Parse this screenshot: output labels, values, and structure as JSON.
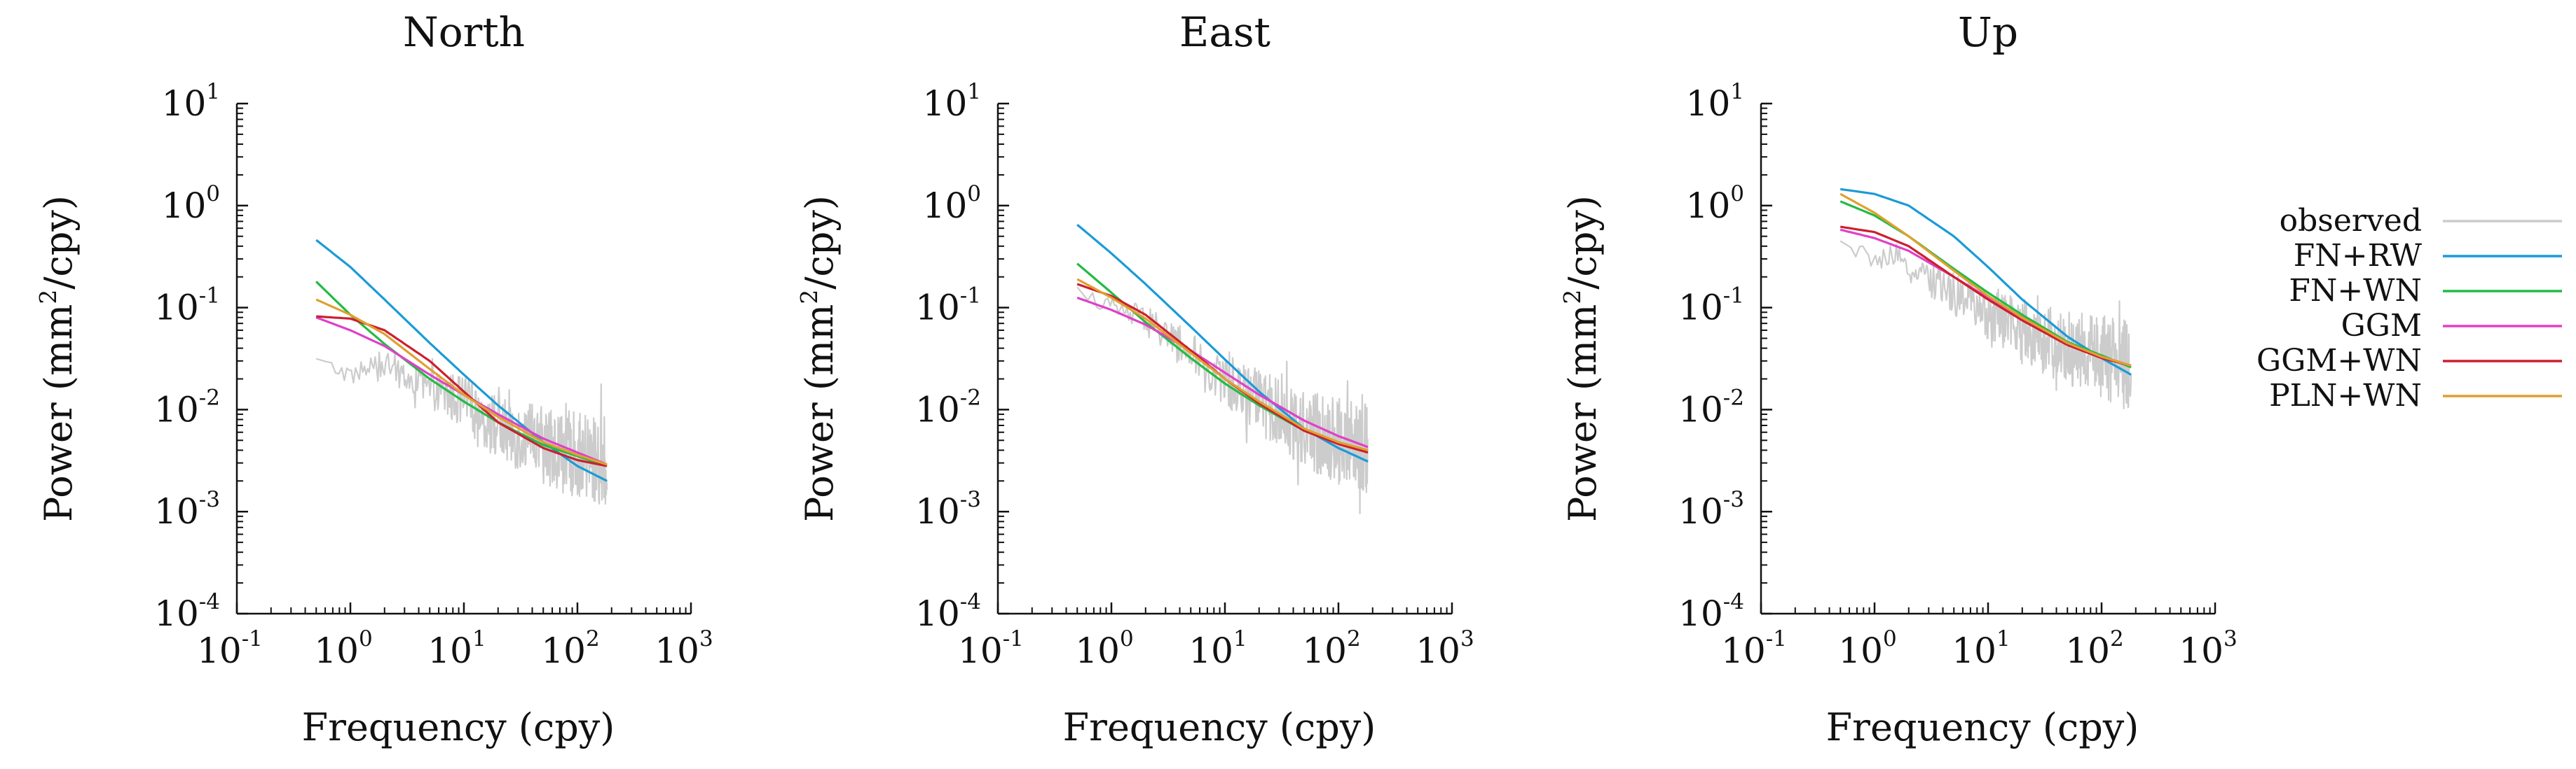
{
  "chart_data": {
    "type": "line",
    "x_scale": "log",
    "y_scale": "log",
    "xlim": [
      0.1,
      1000
    ],
    "ylim": [
      0.0001,
      10
    ],
    "x_ticks": [
      0.1,
      1,
      10,
      100,
      1000
    ],
    "y_ticks": [
      0.0001,
      0.001,
      0.01,
      0.1,
      1,
      10
    ],
    "tick_base": "10",
    "x_tick_exponents": [
      "-1",
      "0",
      "1",
      "2",
      "3"
    ],
    "y_tick_exponents": [
      "-4",
      "-3",
      "-2",
      "-1",
      "0",
      "1"
    ],
    "xlabel": "Frequency (cpy)",
    "ylabel_prefix": "Power (mm",
    "ylabel_sup": "2",
    "ylabel_suffix": "/cpy)",
    "freq_range": [
      0.5,
      182
    ],
    "legend": {
      "position": "right",
      "entries": [
        {
          "label": "observed",
          "color": "#cccccc"
        },
        {
          "label": "FN+RW",
          "color": "#1a9bd7"
        },
        {
          "label": "FN+WN",
          "color": "#22bb44"
        },
        {
          "label": "GGM",
          "color": "#e040c8"
        },
        {
          "label": "GGM+WN",
          "color": "#cc1f2f"
        },
        {
          "label": "PLN+WN",
          "color": "#e0a030"
        }
      ]
    },
    "panels": [
      {
        "title": "North",
        "series": [
          {
            "name": "observed",
            "color": "#cccccc",
            "x": [
              0.5,
              1,
              2,
              5,
              10,
              20,
              50,
              100,
              182
            ],
            "y": [
              0.03,
              0.022,
              0.028,
              0.015,
              0.012,
              0.0065,
              0.0045,
              0.0035,
              0.003
            ]
          },
          {
            "name": "FN+RW",
            "color": "#1a9bd7",
            "x": [
              0.5,
              1,
              2,
              5,
              10,
              20,
              50,
              100,
              182
            ],
            "y": [
              0.46,
              0.25,
              0.12,
              0.045,
              0.022,
              0.011,
              0.0048,
              0.0028,
              0.002
            ]
          },
          {
            "name": "FN+WN",
            "color": "#22bb44",
            "x": [
              0.5,
              1,
              2,
              5,
              10,
              20,
              50,
              100,
              182
            ],
            "y": [
              0.18,
              0.085,
              0.044,
              0.02,
              0.012,
              0.0075,
              0.0045,
              0.0035,
              0.0028
            ]
          },
          {
            "name": "GGM",
            "color": "#e040c8",
            "x": [
              0.5,
              1,
              2,
              5,
              10,
              20,
              50,
              100,
              182
            ],
            "y": [
              0.08,
              0.06,
              0.042,
              0.022,
              0.014,
              0.009,
              0.0052,
              0.0038,
              0.0029
            ]
          },
          {
            "name": "GGM+WN",
            "color": "#cc1f2f",
            "x": [
              0.5,
              1,
              2,
              5,
              10,
              20,
              50,
              100,
              182
            ],
            "y": [
              0.082,
              0.078,
              0.06,
              0.03,
              0.015,
              0.0075,
              0.0042,
              0.0032,
              0.0028
            ]
          },
          {
            "name": "PLN+WN",
            "color": "#e0a030",
            "x": [
              0.5,
              1,
              2,
              5,
              10,
              20,
              50,
              100,
              182
            ],
            "y": [
              0.12,
              0.085,
              0.055,
              0.025,
              0.014,
              0.0085,
              0.0048,
              0.0036,
              0.0029
            ]
          }
        ]
      },
      {
        "title": "East",
        "series": [
          {
            "name": "observed",
            "color": "#cccccc",
            "x": [
              0.5,
              1,
              2,
              5,
              10,
              20,
              50,
              100,
              182
            ],
            "y": [
              0.15,
              0.1,
              0.075,
              0.035,
              0.02,
              0.012,
              0.0065,
              0.005,
              0.004
            ]
          },
          {
            "name": "FN+RW",
            "color": "#1a9bd7",
            "x": [
              0.5,
              1,
              2,
              5,
              10,
              20,
              50,
              100,
              182
            ],
            "y": [
              0.65,
              0.34,
              0.17,
              0.065,
              0.031,
              0.015,
              0.0065,
              0.0042,
              0.0031
            ]
          },
          {
            "name": "FN+WN",
            "color": "#22bb44",
            "x": [
              0.5,
              1,
              2,
              5,
              10,
              20,
              50,
              100,
              182
            ],
            "y": [
              0.27,
              0.14,
              0.072,
              0.032,
              0.018,
              0.011,
              0.0062,
              0.0047,
              0.004
            ]
          },
          {
            "name": "GGM",
            "color": "#e040c8",
            "x": [
              0.5,
              1,
              2,
              5,
              10,
              20,
              50,
              100,
              182
            ],
            "y": [
              0.125,
              0.095,
              0.068,
              0.038,
              0.023,
              0.014,
              0.0078,
              0.0055,
              0.0043
            ]
          },
          {
            "name": "GGM+WN",
            "color": "#cc1f2f",
            "x": [
              0.5,
              1,
              2,
              5,
              10,
              20,
              50,
              100,
              182
            ],
            "y": [
              0.17,
              0.13,
              0.085,
              0.038,
              0.02,
              0.0115,
              0.0062,
              0.0046,
              0.0038
            ]
          },
          {
            "name": "PLN+WN",
            "color": "#e0a030",
            "x": [
              0.5,
              1,
              2,
              5,
              10,
              20,
              50,
              100,
              182
            ],
            "y": [
              0.19,
              0.125,
              0.078,
              0.036,
              0.02,
              0.012,
              0.0065,
              0.0048,
              0.004
            ]
          }
        ]
      },
      {
        "title": "Up",
        "series": [
          {
            "name": "observed",
            "color": "#cccccc",
            "x": [
              0.5,
              1,
              2,
              5,
              10,
              20,
              50,
              100,
              182
            ],
            "y": [
              0.42,
              0.3,
              0.25,
              0.14,
              0.09,
              0.06,
              0.04,
              0.032,
              0.026
            ]
          },
          {
            "name": "FN+RW",
            "color": "#1a9bd7",
            "x": [
              0.5,
              1,
              2,
              5,
              10,
              20,
              50,
              100,
              182
            ],
            "y": [
              1.45,
              1.3,
              1.0,
              0.5,
              0.25,
              0.12,
              0.052,
              0.032,
              0.022
            ]
          },
          {
            "name": "FN+WN",
            "color": "#22bb44",
            "x": [
              0.5,
              1,
              2,
              5,
              10,
              20,
              50,
              100,
              182
            ],
            "y": [
              1.1,
              0.8,
              0.5,
              0.24,
              0.14,
              0.085,
              0.046,
              0.034,
              0.026
            ]
          },
          {
            "name": "GGM",
            "color": "#e040c8",
            "x": [
              0.5,
              1,
              2,
              5,
              10,
              20,
              50,
              100,
              182
            ],
            "y": [
              0.58,
              0.48,
              0.36,
              0.2,
              0.125,
              0.08,
              0.045,
              0.033,
              0.027
            ]
          },
          {
            "name": "GGM+WN",
            "color": "#cc1f2f",
            "x": [
              0.5,
              1,
              2,
              5,
              10,
              20,
              50,
              100,
              182
            ],
            "y": [
              0.62,
              0.55,
              0.4,
              0.2,
              0.12,
              0.075,
              0.043,
              0.032,
              0.027
            ]
          },
          {
            "name": "PLN+WN",
            "color": "#e0a030",
            "x": [
              0.5,
              1,
              2,
              5,
              10,
              20,
              50,
              100,
              182
            ],
            "y": [
              1.3,
              0.85,
              0.5,
              0.23,
              0.13,
              0.08,
              0.045,
              0.033,
              0.027
            ]
          }
        ]
      }
    ]
  }
}
